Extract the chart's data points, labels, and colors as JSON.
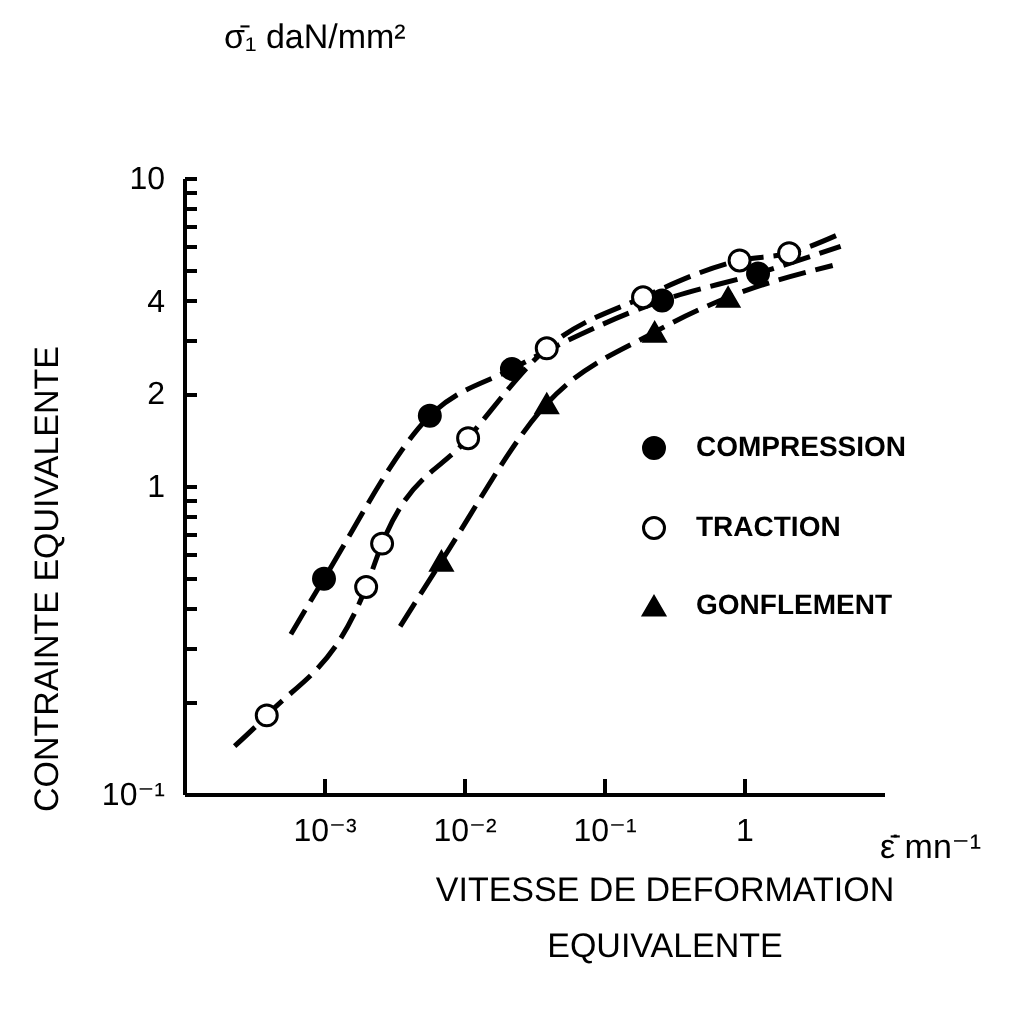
{
  "chart_data": {
    "type": "scatter",
    "xlabel": "VITESSE DE DEFORMATION\nEQUIVALENTE",
    "ylabel": "CONTRAINTE EQUIVALENTE",
    "annotations": [
      "σ̄₁  daN/mm²",
      "ε̄̇ mn⁻¹"
    ],
    "log": "xy",
    "legend": "right",
    "xlim": [
      0.0001,
      10
    ],
    "ylim": [
      0.1,
      10
    ],
    "xticks": [
      {
        "value": 0.001,
        "label": "10⁻³"
      },
      {
        "value": 0.01,
        "label": "10⁻²"
      },
      {
        "value": 0.1,
        "label": "10⁻¹"
      },
      1
    ],
    "yticks": [
      {
        "value": 0.1,
        "label": "10⁻¹"
      },
      {
        "value": 0.2,
        "label": null
      },
      {
        "value": 0.3,
        "label": null
      },
      {
        "value": 0.4,
        "label": null
      },
      {
        "value": 0.5,
        "label": null
      },
      {
        "value": 0.6,
        "label": null
      },
      {
        "value": 0.7,
        "label": null
      },
      {
        "value": 0.8,
        "label": null
      },
      {
        "value": 0.9,
        "label": null
      },
      1,
      2,
      {
        "value": 3,
        "label": null
      },
      4,
      {
        "value": 5,
        "label": null
      },
      {
        "value": 6,
        "label": null
      },
      {
        "value": 7,
        "label": null
      },
      {
        "value": 8,
        "label": null
      },
      {
        "value": 9,
        "label": null
      },
      10
    ],
    "series": [
      {
        "type": "line",
        "line_style": "dashed",
        "color": "#000000",
        "x": [
          0.00058,
          0.001,
          0.0057,
          0.022,
          0.26,
          1.26,
          4.9
        ],
        "values": [
          0.33,
          0.5,
          1.69,
          2.4,
          4.0,
          4.9,
          6.0
        ]
      },
      {
        "type": "line",
        "line_style": "dashed",
        "color": "#000000",
        "x": [
          0.00023,
          0.00039,
          0.002,
          0.0026,
          0.0107,
          0.039,
          0.19,
          0.93,
          2.1,
          4.9
        ],
        "values": [
          0.143,
          0.18,
          0.47,
          0.65,
          1.43,
          2.8,
          4.1,
          5.4,
          5.7,
          6.6
        ]
      },
      {
        "type": "line",
        "line_style": "dashed",
        "color": "#000000",
        "x": [
          0.0035,
          0.0069,
          0.039,
          0.23,
          0.77,
          4.3
        ],
        "values": [
          0.35,
          0.57,
          1.85,
          3.16,
          4.1,
          5.2
        ]
      },
      {
        "name": "COMPRESSION",
        "marker": "circle",
        "color": "#000000",
        "x": [
          0.001,
          0.0057,
          0.022,
          0.26,
          1.26
        ],
        "values": [
          0.5,
          1.69,
          2.4,
          4.0,
          4.9
        ]
      },
      {
        "name": "TRACTION",
        "marker": "circle",
        "color": "#ffffff",
        "x": [
          0.00039,
          0.002,
          0.0026,
          0.0107,
          0.039,
          0.19,
          0.93,
          2.1
        ],
        "values": [
          0.18,
          0.47,
          0.65,
          1.43,
          2.8,
          4.1,
          5.4,
          5.7
        ]
      },
      {
        "name": "GONFLEMENT",
        "marker": "triangle",
        "color": "#000000",
        "x": [
          0.0069,
          0.039,
          0.23,
          0.77
        ],
        "values": [
          0.57,
          1.85,
          3.16,
          4.1
        ]
      }
    ]
  }
}
